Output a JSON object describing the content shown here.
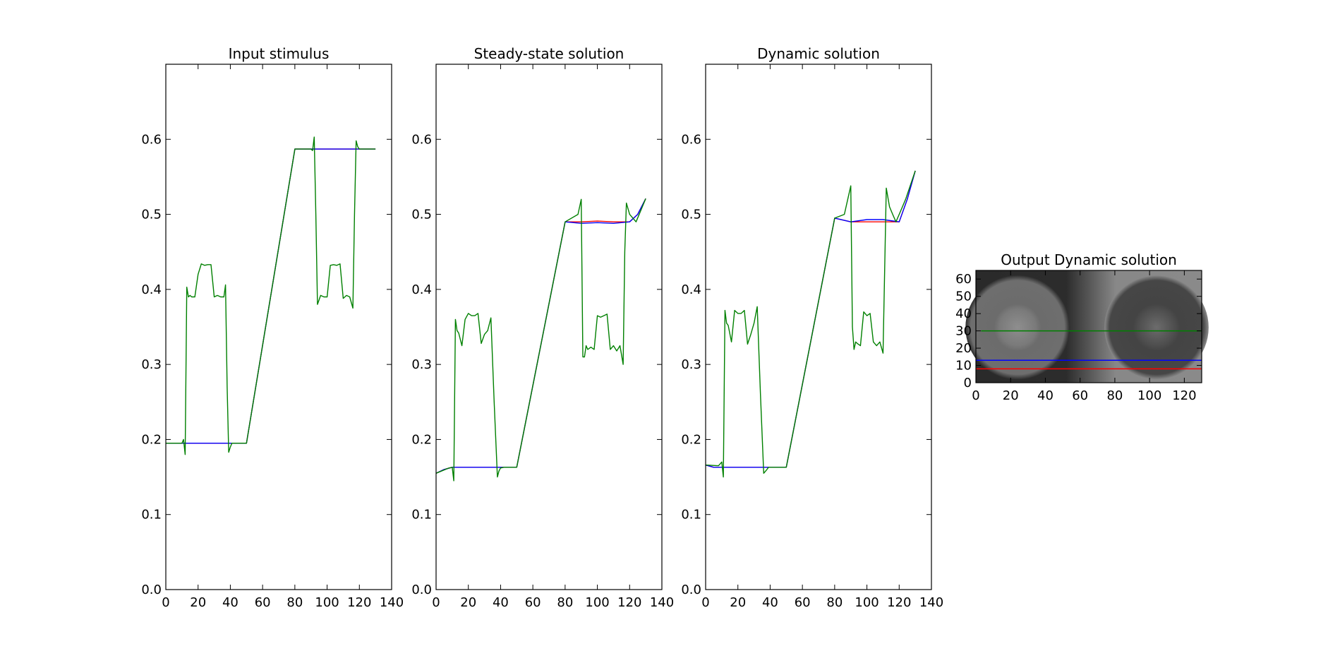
{
  "chart_data": [
    {
      "type": "line",
      "title": "Input stimulus",
      "xlim": [
        0,
        140
      ],
      "ylim": [
        0,
        0.7
      ],
      "xticks": [
        0,
        20,
        40,
        60,
        80,
        100,
        120,
        140
      ],
      "yticks": [
        0.0,
        0.1,
        0.2,
        0.3,
        0.4,
        0.5,
        0.6
      ],
      "grid": false,
      "series": [
        {
          "color": "#ff0000",
          "x": [
            0,
            10,
            50,
            80,
            90,
            130
          ],
          "y": [
            0.195,
            0.195,
            0.195,
            0.587,
            0.587,
            0.587
          ]
        },
        {
          "color": "#0000ff",
          "x": [
            0,
            10,
            50,
            80,
            90,
            130
          ],
          "y": [
            0.195,
            0.195,
            0.195,
            0.587,
            0.587,
            0.587
          ]
        },
        {
          "color": "#008000",
          "x": [
            0,
            10,
            11,
            12,
            13,
            14,
            15,
            16,
            18,
            20,
            22,
            24,
            26,
            28,
            30,
            32,
            34,
            36,
            37,
            38,
            39,
            40,
            41,
            50,
            80,
            90,
            91,
            92,
            93,
            94,
            96,
            98,
            100,
            102,
            104,
            106,
            108,
            110,
            112,
            114,
            116,
            117,
            118,
            119,
            120,
            130
          ],
          "y": [
            0.195,
            0.195,
            0.2,
            0.18,
            0.403,
            0.39,
            0.392,
            0.39,
            0.39,
            0.42,
            0.434,
            0.432,
            0.433,
            0.433,
            0.39,
            0.392,
            0.39,
            0.39,
            0.406,
            0.27,
            0.183,
            0.19,
            0.195,
            0.195,
            0.587,
            0.587,
            0.585,
            0.603,
            0.5,
            0.38,
            0.392,
            0.39,
            0.39,
            0.432,
            0.433,
            0.432,
            0.434,
            0.388,
            0.392,
            0.39,
            0.375,
            0.5,
            0.598,
            0.59,
            0.587,
            0.587
          ]
        }
      ]
    },
    {
      "type": "line",
      "title": "Steady-state solution",
      "xlim": [
        0,
        140
      ],
      "ylim": [
        0,
        0.7
      ],
      "xticks": [
        0,
        20,
        40,
        60,
        80,
        100,
        120,
        140
      ],
      "yticks": [
        0.0,
        0.1,
        0.2,
        0.3,
        0.4,
        0.5,
        0.6
      ],
      "grid": false,
      "series": [
        {
          "color": "#ff0000",
          "x": [
            0,
            5,
            10,
            50,
            80,
            90,
            100,
            110,
            120,
            125,
            130
          ],
          "y": [
            0.155,
            0.16,
            0.163,
            0.163,
            0.49,
            0.49,
            0.491,
            0.49,
            0.49,
            0.5,
            0.521
          ]
        },
        {
          "color": "#0000ff",
          "x": [
            0,
            5,
            10,
            50,
            80,
            90,
            100,
            110,
            120,
            125,
            130
          ],
          "y": [
            0.155,
            0.16,
            0.163,
            0.163,
            0.49,
            0.488,
            0.489,
            0.488,
            0.49,
            0.5,
            0.521
          ]
        },
        {
          "color": "#008000",
          "x": [
            0,
            8,
            10,
            11,
            12,
            13,
            14,
            16,
            18,
            20,
            22,
            24,
            26,
            28,
            30,
            32,
            34,
            36,
            38,
            39,
            40,
            42,
            50,
            80,
            88,
            90,
            91,
            92,
            93,
            94,
            96,
            98,
            100,
            102,
            104,
            106,
            108,
            110,
            112,
            114,
            116,
            117,
            118,
            120,
            124,
            130
          ],
          "y": [
            0.155,
            0.162,
            0.163,
            0.145,
            0.36,
            0.345,
            0.342,
            0.325,
            0.36,
            0.368,
            0.365,
            0.365,
            0.368,
            0.328,
            0.34,
            0.345,
            0.362,
            0.25,
            0.15,
            0.158,
            0.162,
            0.163,
            0.163,
            0.49,
            0.5,
            0.52,
            0.31,
            0.31,
            0.325,
            0.32,
            0.323,
            0.32,
            0.365,
            0.363,
            0.365,
            0.367,
            0.32,
            0.325,
            0.318,
            0.325,
            0.3,
            0.45,
            0.515,
            0.5,
            0.49,
            0.521
          ]
        }
      ]
    },
    {
      "type": "line",
      "title": "Dynamic solution",
      "xlim": [
        0,
        140
      ],
      "ylim": [
        0,
        0.7
      ],
      "xticks": [
        0,
        20,
        40,
        60,
        80,
        100,
        120,
        140
      ],
      "yticks": [
        0.0,
        0.1,
        0.2,
        0.3,
        0.4,
        0.5,
        0.6
      ],
      "grid": false,
      "series": [
        {
          "color": "#ff0000",
          "x": [
            0,
            5,
            10,
            50,
            80,
            90,
            100,
            110,
            120,
            125,
            130
          ],
          "y": [
            0.166,
            0.163,
            0.163,
            0.163,
            0.495,
            0.49,
            0.49,
            0.49,
            0.49,
            0.52,
            0.558
          ]
        },
        {
          "color": "#0000ff",
          "x": [
            0,
            5,
            10,
            50,
            80,
            90,
            100,
            110,
            120,
            125,
            130
          ],
          "y": [
            0.166,
            0.163,
            0.163,
            0.163,
            0.495,
            0.49,
            0.493,
            0.493,
            0.49,
            0.52,
            0.558
          ]
        },
        {
          "color": "#008000",
          "x": [
            0,
            8,
            10,
            11,
            12,
            13,
            14,
            16,
            18,
            20,
            22,
            24,
            26,
            28,
            30,
            32,
            34,
            36,
            38,
            39,
            40,
            42,
            50,
            80,
            86,
            90,
            91,
            92,
            93,
            94,
            96,
            98,
            100,
            102,
            104,
            106,
            108,
            110,
            112,
            114,
            116,
            117,
            118,
            120,
            124,
            130
          ],
          "y": [
            0.166,
            0.165,
            0.17,
            0.15,
            0.372,
            0.355,
            0.352,
            0.33,
            0.372,
            0.368,
            0.368,
            0.372,
            0.327,
            0.34,
            0.355,
            0.377,
            0.26,
            0.155,
            0.16,
            0.163,
            0.163,
            0.163,
            0.163,
            0.495,
            0.5,
            0.538,
            0.35,
            0.32,
            0.33,
            0.328,
            0.325,
            0.37,
            0.365,
            0.368,
            0.33,
            0.325,
            0.33,
            0.315,
            0.535,
            0.51,
            0.5,
            0.495,
            0.49,
            0.5,
            0.52,
            0.558
          ]
        }
      ]
    },
    {
      "type": "heatmap",
      "title": "Output Dynamic solution",
      "xlim": [
        0,
        130
      ],
      "ylim": [
        0,
        65
      ],
      "xticks": [
        0,
        20,
        40,
        60,
        80,
        100,
        120
      ],
      "yticks": [
        0,
        10,
        20,
        30,
        40,
        50,
        60
      ],
      "grid": false,
      "horizontal_lines": [
        {
          "color": "#008000",
          "y": 30
        },
        {
          "color": "#0000ff",
          "y": 13
        },
        {
          "color": "#ff0000",
          "y": 8
        }
      ]
    }
  ]
}
